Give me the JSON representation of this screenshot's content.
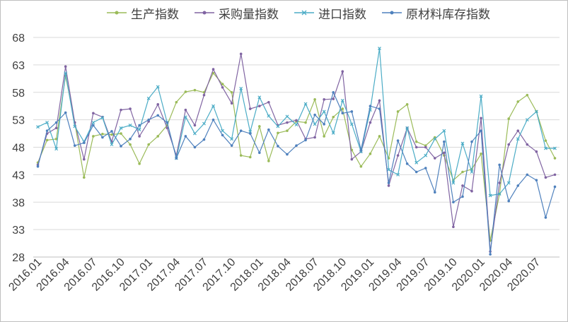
{
  "chart_data": {
    "type": "line",
    "ylim": [
      28,
      68
    ],
    "yticks": [
      28,
      33,
      38,
      43,
      48,
      53,
      58,
      63,
      68
    ],
    "grid": true,
    "legend_position": "top",
    "x_tick_labels": [
      "2016.01",
      "2016.04",
      "2016.07",
      "2016.10",
      "2017.01",
      "2017.04",
      "2017.07",
      "2017.10",
      "2018.01",
      "2018.04",
      "2018.07",
      "2018.10",
      "2019.01",
      "2019.04",
      "2019.07",
      "2019.10",
      "2020.01",
      "2020.04",
      "2020.07"
    ],
    "x_tick_every": 3,
    "n_points": 57,
    "series": [
      {
        "name": "生产指数",
        "color": "#9bbb59",
        "marker": "dot",
        "values": [
          45.2,
          49.3,
          49.5,
          61.0,
          52.5,
          42.5,
          50.0,
          50.4,
          50.3,
          50.5,
          48.5,
          45.0,
          48.5,
          50.0,
          52.0,
          56.2,
          58.1,
          58.4,
          58.0,
          61.5,
          59.5,
          58.0,
          46.5,
          46.2,
          51.8,
          45.5,
          50.6,
          51.0,
          52.7,
          52.5,
          56.7,
          50.0,
          53.5,
          55.0,
          47.5,
          44.5,
          46.8,
          50.0,
          46.0,
          54.5,
          55.8,
          49.0,
          48.3,
          49.8,
          46.5,
          42.0,
          43.5,
          44.0,
          46.8,
          31.0,
          39.5,
          53.2,
          56.3,
          57.5,
          54.5,
          49.2,
          46.0
        ]
      },
      {
        "name": "采购量指数",
        "color": "#8064a2",
        "marker": "dot",
        "values": [
          44.8,
          50.5,
          51.5,
          62.7,
          52.5,
          45.8,
          54.2,
          53.5,
          49.0,
          54.8,
          55.0,
          50.0,
          52.7,
          55.8,
          51.5,
          46.5,
          54.8,
          52.0,
          57.5,
          62.2,
          58.9,
          56.0,
          65.0,
          55.0,
          55.5,
          56.2,
          52.0,
          52.5,
          52.9,
          49.5,
          49.8,
          56.7,
          56.8,
          61.8,
          45.8,
          47.2,
          52.5,
          56.5,
          41.0,
          46.5,
          51.5,
          48.0,
          48.0,
          46.0,
          47.0,
          33.5,
          41.0,
          40.0,
          53.3,
          29.0,
          41.5,
          48.5,
          51.0,
          48.5,
          47.2,
          42.5,
          43.0
        ]
      },
      {
        "name": "进口指数",
        "color": "#4bacc6",
        "marker": "x",
        "values": [
          51.7,
          52.5,
          47.7,
          61.5,
          51.8,
          49.0,
          52.5,
          53.4,
          48.5,
          51.5,
          52.0,
          51.2,
          56.9,
          59.0,
          52.5,
          46.0,
          53.5,
          50.5,
          52.3,
          55.5,
          51.0,
          49.5,
          58.7,
          50.8,
          57.1,
          53.7,
          51.8,
          53.6,
          52.1,
          55.9,
          52.2,
          54.5,
          50.6,
          56.5,
          52.2,
          47.2,
          54.8,
          66.0,
          43.9,
          43.0,
          51.5,
          45.2,
          46.5,
          49.5,
          51.0,
          41.5,
          48.7,
          43.5,
          57.3,
          39.2,
          39.5,
          41.5,
          49.5,
          53.0,
          54.5,
          47.8,
          47.8
        ]
      },
      {
        "name": "原材料库存指数",
        "color": "#4f81bd",
        "marker": "dot",
        "values": [
          44.5,
          51.0,
          52.5,
          54.3,
          48.3,
          48.8,
          52.0,
          49.8,
          50.9,
          48.2,
          49.5,
          52.0,
          53.0,
          53.8,
          52.5,
          46.0,
          50.0,
          48.0,
          49.4,
          53.0,
          50.2,
          48.3,
          51.0,
          50.5,
          47.0,
          51.2,
          48.2,
          46.7,
          48.3,
          49.3,
          53.9,
          52.2,
          58.0,
          54.2,
          54.5,
          47.5,
          55.5,
          55.0,
          41.5,
          49.2,
          45.0,
          43.5,
          44.2,
          39.8,
          49.0,
          38.0,
          39.0,
          49.0,
          51.0,
          28.5,
          44.8,
          38.2,
          41.0,
          43.0,
          42.0,
          35.2,
          40.8
        ]
      }
    ]
  }
}
